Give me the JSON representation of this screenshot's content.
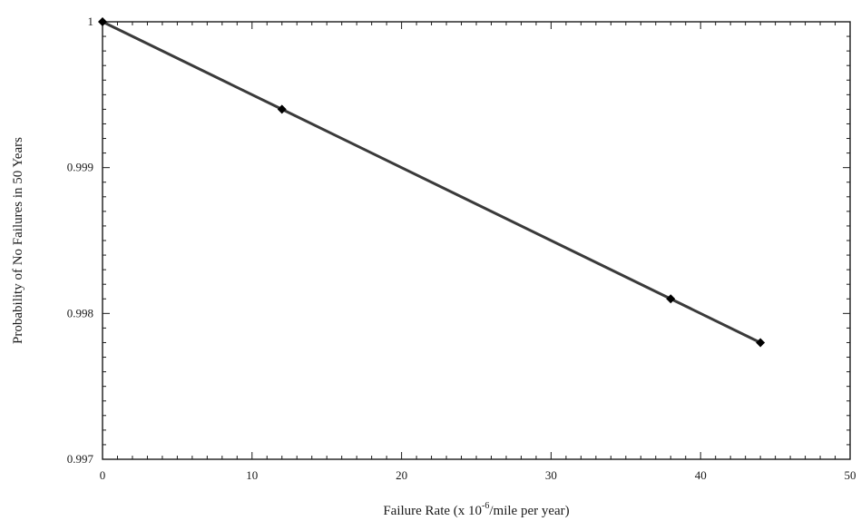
{
  "chart_data": {
    "type": "line",
    "title": "",
    "xlabel": "Failure Rate (x 10",
    "xlabel_superscript": "-6",
    "xlabel_suffix": "/mile per year)",
    "ylabel": "Probability of No Failures in 50 Years",
    "xlim": [
      0,
      50
    ],
    "ylim": [
      0.997,
      1.0
    ],
    "x_ticks": [
      0,
      10,
      20,
      30,
      40,
      50
    ],
    "x_tick_labels": [
      "0",
      "10",
      "20",
      "30",
      "40",
      "50"
    ],
    "y_ticks": [
      0.997,
      0.998,
      0.999,
      1.0
    ],
    "y_tick_labels": [
      "0.997",
      "0.998",
      "0.999",
      "1"
    ],
    "grid": false,
    "series": [
      {
        "x": [
          0,
          12,
          38,
          44
        ],
        "y": [
          1.0,
          0.9994,
          0.9981,
          0.9978
        ],
        "marker": "diamond",
        "color": "#3a3a3a"
      }
    ]
  }
}
